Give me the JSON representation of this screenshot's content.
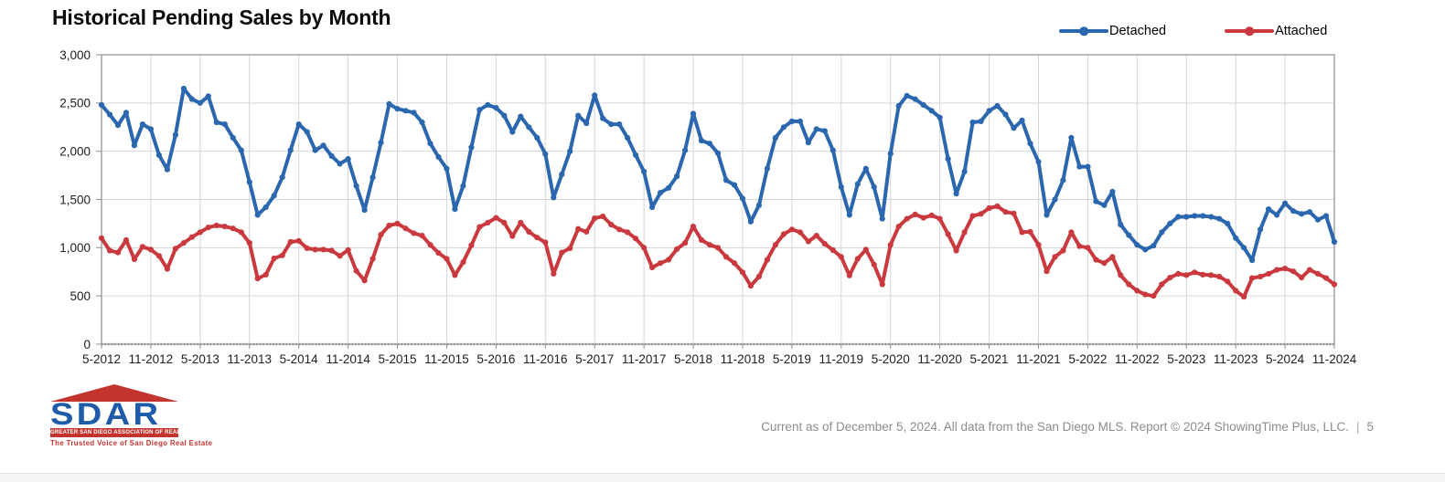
{
  "page": {
    "title": "Historical Pending Sales by Month"
  },
  "legend": {
    "items": [
      {
        "label": "Detached",
        "color": "#2B67AE"
      },
      {
        "label": "Attached",
        "color": "#C9393E"
      }
    ]
  },
  "chart_data": {
    "type": "line",
    "title": "Historical Pending Sales by Month",
    "x_frequency": "monthly",
    "x_start": "5-2012",
    "x_end": "11-2024",
    "x_tick_labels": [
      "5-2012",
      "11-2012",
      "5-2013",
      "11-2013",
      "5-2014",
      "11-2014",
      "5-2015",
      "11-2015",
      "5-2016",
      "11-2016",
      "5-2017",
      "11-2017",
      "5-2018",
      "11-2018",
      "5-2019",
      "11-2019",
      "5-2020",
      "11-2020",
      "5-2021",
      "11-2021",
      "5-2022",
      "11-2022",
      "5-2023",
      "11-2023",
      "5-2024",
      "11-2024"
    ],
    "y_tick_labels": [
      "0",
      "500",
      "1,000",
      "1,500",
      "2,000",
      "2,500",
      "3,000"
    ],
    "ylim": [
      0,
      3000
    ],
    "ytick_step": 500,
    "grid": true,
    "legend_position": "top-right",
    "series": [
      {
        "name": "Detached",
        "color": "#2B67AE",
        "values": [
          2480,
          2380,
          2270,
          2400,
          2060,
          2280,
          2230,
          1960,
          1810,
          2170,
          2650,
          2540,
          2500,
          2570,
          2300,
          2280,
          2140,
          2010,
          1680,
          1340,
          1420,
          1540,
          1730,
          2010,
          2280,
          2200,
          2010,
          2060,
          1950,
          1870,
          1920,
          1640,
          1390,
          1730,
          2090,
          2490,
          2440,
          2420,
          2400,
          2300,
          2080,
          1940,
          1820,
          1400,
          1640,
          2040,
          2430,
          2480,
          2450,
          2370,
          2200,
          2360,
          2250,
          2140,
          1970,
          1520,
          1760,
          2000,
          2370,
          2290,
          2580,
          2340,
          2280,
          2280,
          2140,
          1960,
          1790,
          1420,
          1570,
          1620,
          1740,
          2010,
          2390,
          2110,
          2080,
          1980,
          1700,
          1650,
          1510,
          1270,
          1440,
          1820,
          2140,
          2250,
          2310,
          2310,
          2090,
          2230,
          2210,
          2010,
          1630,
          1340,
          1660,
          1820,
          1630,
          1300,
          1975,
          2470,
          2575,
          2540,
          2480,
          2420,
          2350,
          1920,
          1560,
          1790,
          2300,
          2310,
          2420,
          2470,
          2380,
          2240,
          2320,
          2080,
          1890,
          1340,
          1500,
          1700,
          2140,
          1840,
          1840,
          1480,
          1440,
          1580,
          1240,
          1130,
          1030,
          980,
          1020,
          1160,
          1250,
          1320,
          1320,
          1330,
          1330,
          1320,
          1300,
          1250,
          1100,
          1000,
          870,
          1190,
          1400,
          1340,
          1460,
          1380,
          1350,
          1370,
          1290,
          1330,
          1060
        ]
      },
      {
        "name": "Attached",
        "color": "#C9393E",
        "values": [
          1100,
          970,
          950,
          1080,
          880,
          1010,
          980,
          915,
          780,
          990,
          1050,
          1110,
          1160,
          1210,
          1230,
          1220,
          1200,
          1160,
          1050,
          680,
          720,
          890,
          920,
          1060,
          1070,
          995,
          980,
          980,
          970,
          915,
          975,
          760,
          660,
          885,
          1135,
          1230,
          1250,
          1200,
          1150,
          1125,
          1030,
          945,
          885,
          715,
          850,
          1025,
          1215,
          1260,
          1310,
          1260,
          1120,
          1260,
          1165,
          1105,
          1055,
          730,
          950,
          995,
          1195,
          1165,
          1305,
          1325,
          1240,
          1190,
          1160,
          1095,
          1000,
          795,
          840,
          875,
          985,
          1050,
          1220,
          1080,
          1030,
          1000,
          905,
          840,
          745,
          605,
          700,
          875,
          1030,
          1140,
          1190,
          1160,
          1065,
          1125,
          1040,
          975,
          905,
          712,
          885,
          980,
          825,
          620,
          1030,
          1220,
          1300,
          1345,
          1310,
          1335,
          1300,
          1140,
          970,
          1160,
          1330,
          1350,
          1410,
          1430,
          1370,
          1355,
          1160,
          1165,
          1030,
          755,
          905,
          970,
          1160,
          1015,
          1000,
          875,
          840,
          905,
          715,
          620,
          555,
          515,
          500,
          620,
          690,
          730,
          715,
          745,
          720,
          715,
          700,
          650,
          555,
          490,
          685,
          700,
          730,
          770,
          785,
          755,
          690,
          770,
          730,
          685,
          620
        ]
      }
    ]
  },
  "logo": {
    "wordmark": "SDAR",
    "banner": "GREATER SAN DIEGO ASSOCIATION OF REALTORS®",
    "tagline": "The Trusted Voice of San Diego Real Estate"
  },
  "footer": {
    "text": "Current as of December 5, 2024. All data from the San Diego MLS. Report © 2024 ShowingTime Plus, LLC.",
    "separator": "|",
    "page_number": "5"
  }
}
